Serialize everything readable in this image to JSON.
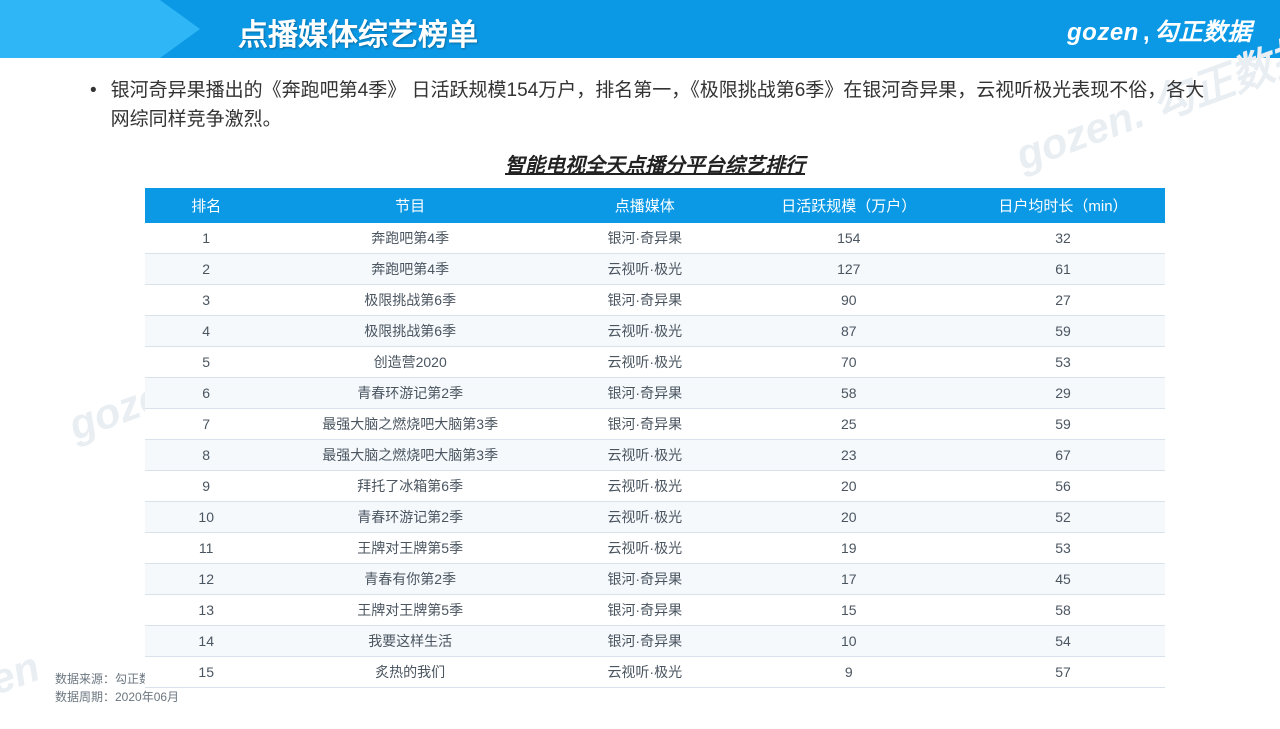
{
  "header": {
    "title": "点播媒体综艺榜单",
    "brand_en": "gozen",
    "brand_cn": "勾正数据"
  },
  "bullet": "银河奇异果播出的《奔跑吧第4季》 日活跃规模154万户，排名第一，《极限挑战第6季》在银河奇异果，云视听极光表现不俗，各大网综同样竞争激烈。",
  "table": {
    "title": "智能电视全天点播分平台综艺排行",
    "columns": [
      "排名",
      "节目",
      "点播媒体",
      "日活跃规模（万户）",
      "日户均时长（min）"
    ],
    "rows": [
      [
        "1",
        "奔跑吧第4季",
        "银河·奇异果",
        "154",
        "32"
      ],
      [
        "2",
        "奔跑吧第4季",
        "云视听·极光",
        "127",
        "61"
      ],
      [
        "3",
        "极限挑战第6季",
        "银河·奇异果",
        "90",
        "27"
      ],
      [
        "4",
        "极限挑战第6季",
        "云视听·极光",
        "87",
        "59"
      ],
      [
        "5",
        "创造营2020",
        "云视听·极光",
        "70",
        "53"
      ],
      [
        "6",
        "青春环游记第2季",
        "银河·奇异果",
        "58",
        "29"
      ],
      [
        "7",
        "最强大脑之燃烧吧大脑第3季",
        "银河·奇异果",
        "25",
        "59"
      ],
      [
        "8",
        "最强大脑之燃烧吧大脑第3季",
        "云视听·极光",
        "23",
        "67"
      ],
      [
        "9",
        "拜托了冰箱第6季",
        "云视听·极光",
        "20",
        "56"
      ],
      [
        "10",
        "青春环游记第2季",
        "云视听·极光",
        "20",
        "52"
      ],
      [
        "11",
        "王牌对王牌第5季",
        "云视听·极光",
        "19",
        "53"
      ],
      [
        "12",
        "青春有你第2季",
        "银河·奇异果",
        "17",
        "45"
      ],
      [
        "13",
        "王牌对王牌第5季",
        "银河·奇异果",
        "15",
        "58"
      ],
      [
        "14",
        "我要这样生活",
        "银河·奇异果",
        "10",
        "54"
      ],
      [
        "15",
        "炙热的我们",
        "云视听·极光",
        "9",
        "57"
      ]
    ]
  },
  "footer": {
    "source": "数据来源：勾正数据 ORS-联网电视（CTV）收视系统",
    "period": "数据周期：2020年06月"
  },
  "colors": {
    "header_bg": "#0b99e6",
    "header_accent": "#2fb6f6",
    "row_alt": "#f5f9fc",
    "border": "#d9e2ea"
  }
}
